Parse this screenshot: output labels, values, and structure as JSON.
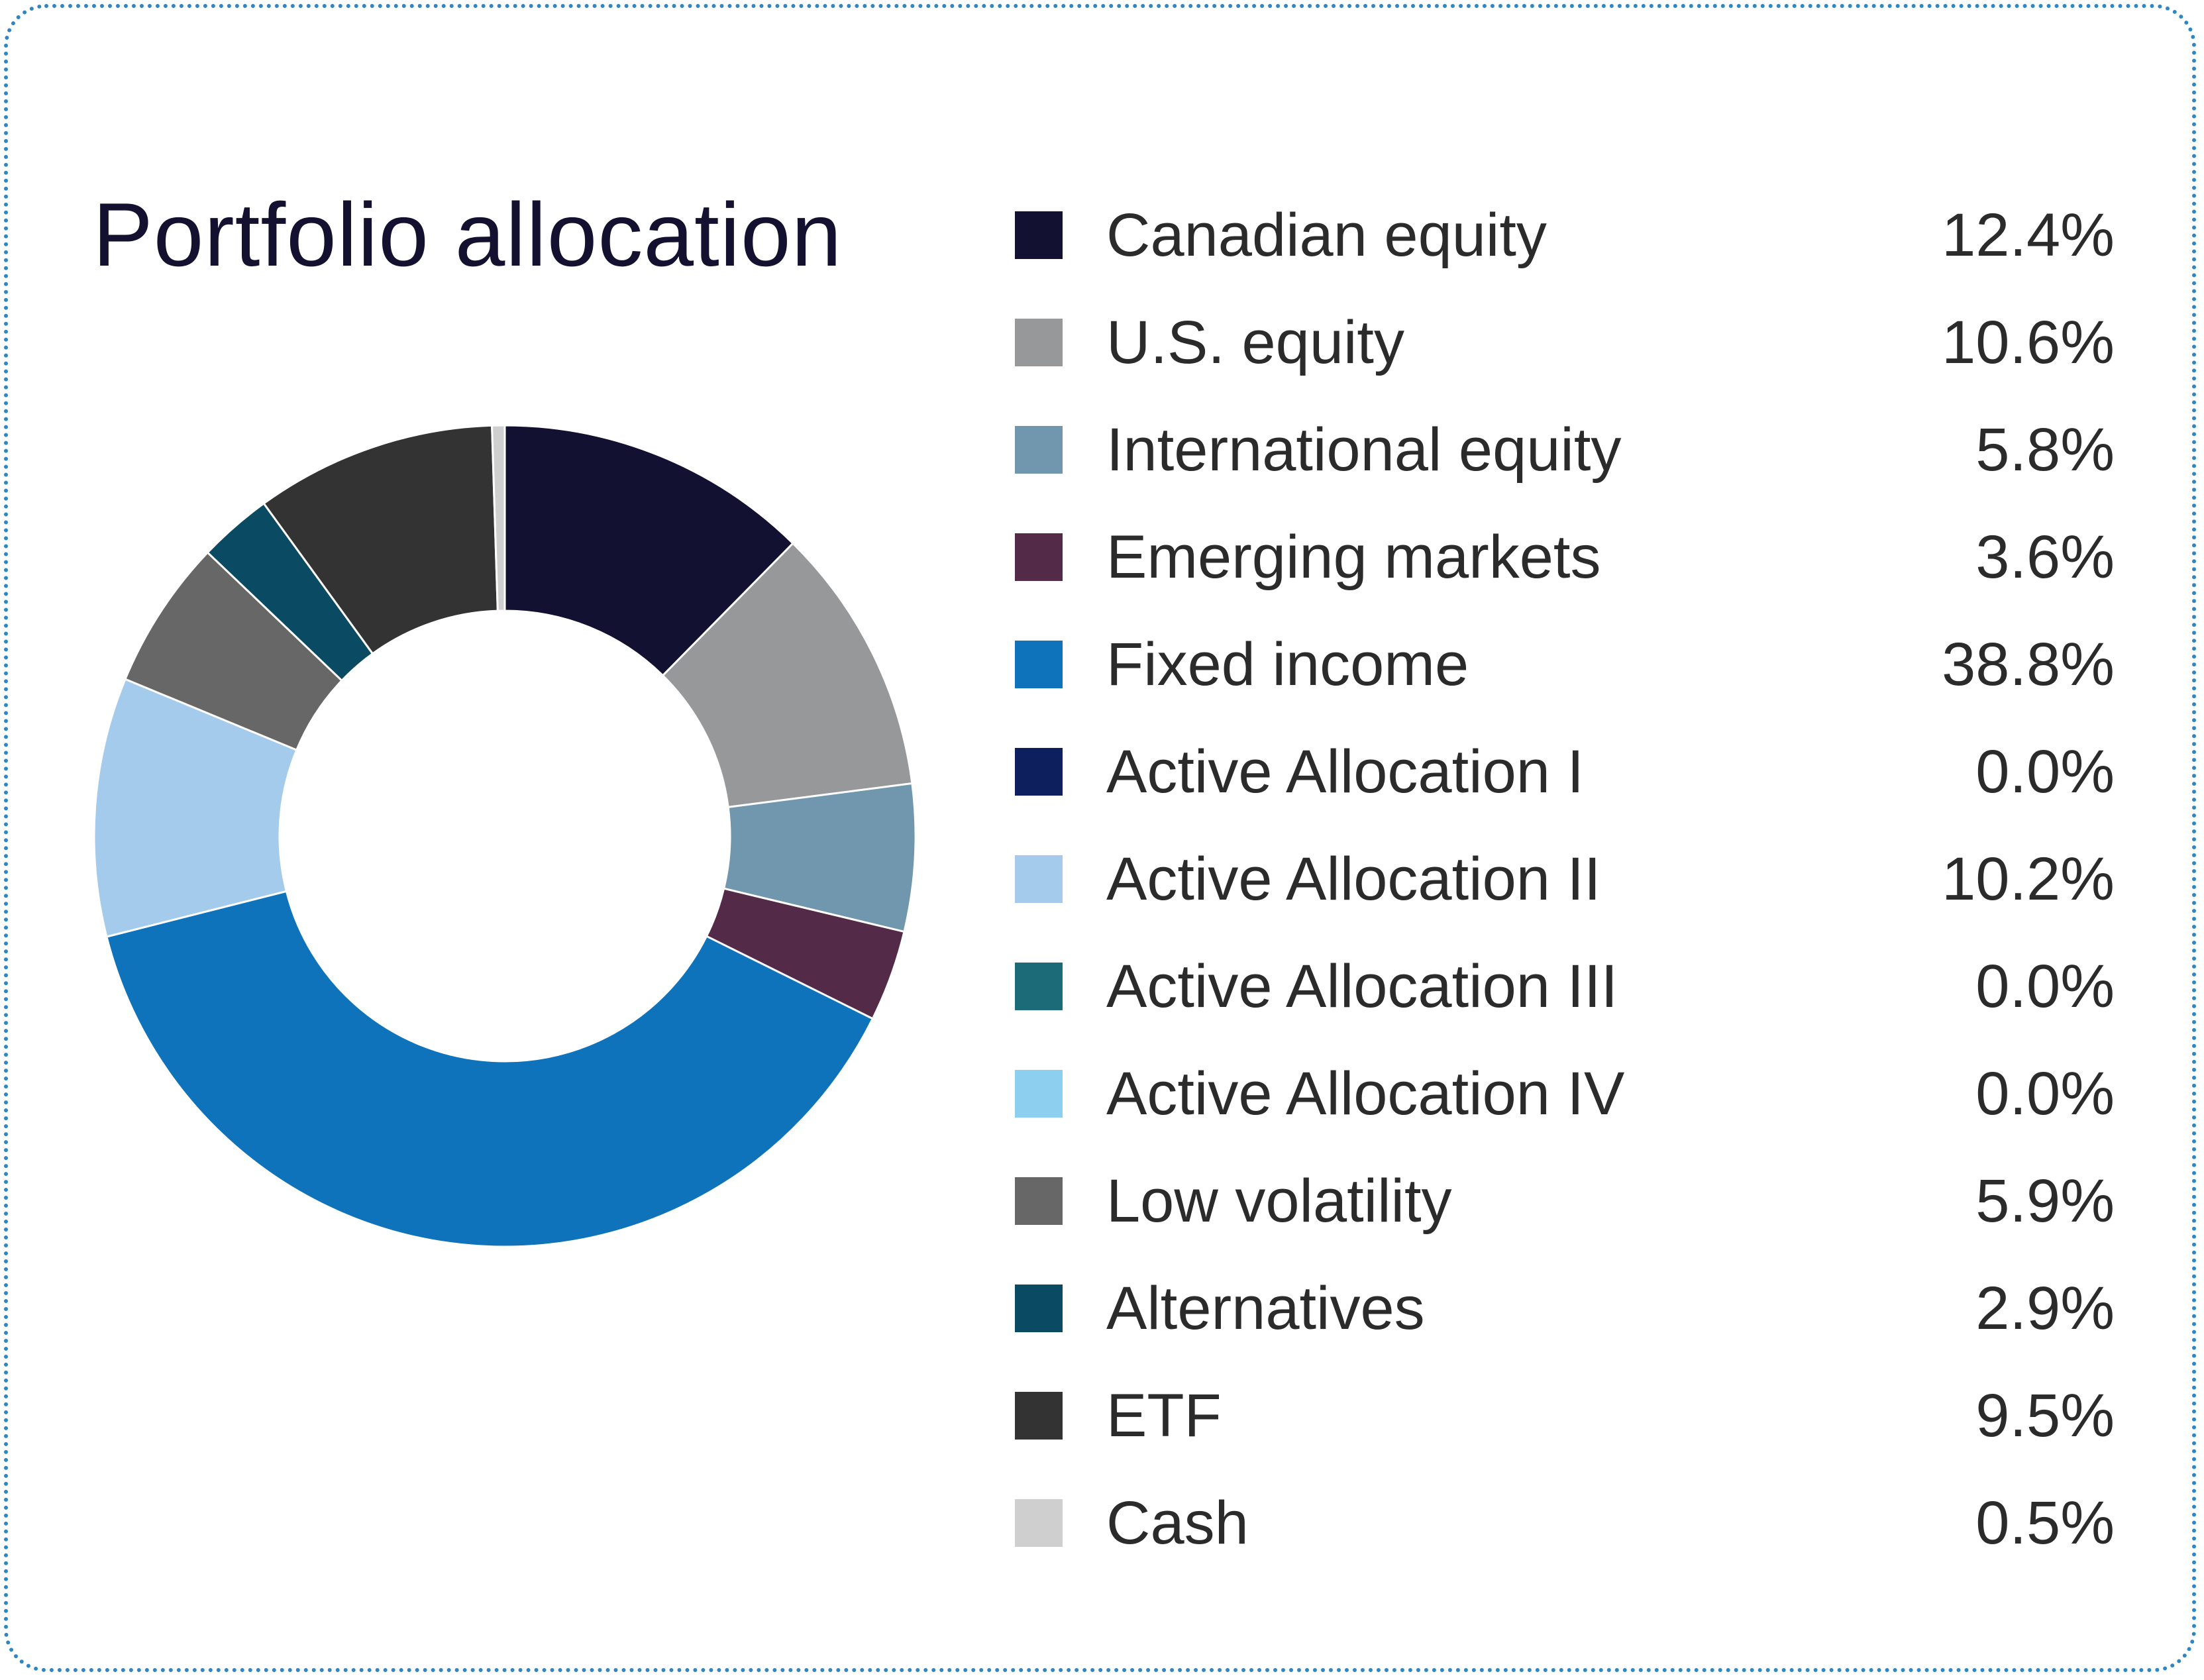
{
  "chart_data": {
    "type": "pie",
    "title": "Portfolio allocation",
    "legend_position": "right",
    "donut": true,
    "slices": [
      {
        "label": "Canadian equity",
        "value": 12.4,
        "display": "12.4%",
        "color": "#131131"
      },
      {
        "label": "U.S. equity",
        "value": 10.6,
        "display": "10.6%",
        "color": "#97989a"
      },
      {
        "label": "International equity",
        "value": 5.8,
        "display": "5.8%",
        "color": "#7197ae"
      },
      {
        "label": "Emerging markets",
        "value": 3.6,
        "display": "3.6%",
        "color": "#532a48"
      },
      {
        "label": "Fixed income",
        "value": 38.8,
        "display": "38.8%",
        "color": "#0e73bb"
      },
      {
        "label": "Active Allocation I",
        "value": 0.0,
        "display": "0.0%",
        "color": "#0e1f5d"
      },
      {
        "label": "Active Allocation II",
        "value": 10.2,
        "display": "10.2%",
        "color": "#a4cbec"
      },
      {
        "label": "Active Allocation III",
        "value": 0.0,
        "display": "0.0%",
        "color": "#1c6b78"
      },
      {
        "label": "Active Allocation IV",
        "value": 0.0,
        "display": "0.0%",
        "color": "#8dcfee"
      },
      {
        "label": "Low volatility",
        "value": 5.9,
        "display": "5.9%",
        "color": "#676767"
      },
      {
        "label": "Alternatives",
        "value": 2.9,
        "display": "2.9%",
        "color": "#0a4b63"
      },
      {
        "label": "ETF",
        "value": 9.5,
        "display": "9.5%",
        "color": "#333333"
      },
      {
        "label": "Cash",
        "value": 0.5,
        "display": "0.5%",
        "color": "#cfcfcf"
      }
    ]
  }
}
